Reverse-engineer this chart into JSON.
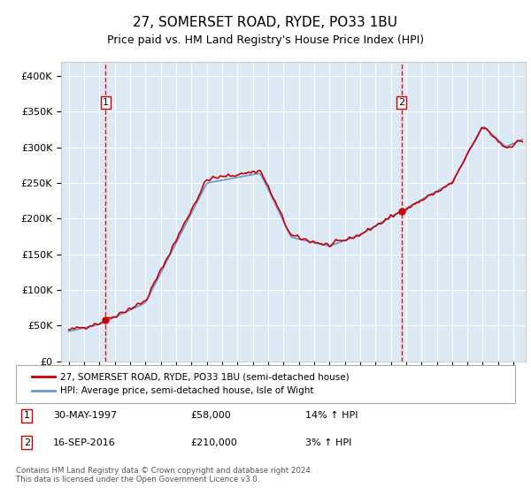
{
  "title": "27, SOMERSET ROAD, RYDE, PO33 1BU",
  "subtitle": "Price paid vs. HM Land Registry's House Price Index (HPI)",
  "legend_line1": "27, SOMERSET ROAD, RYDE, PO33 1BU (semi-detached house)",
  "legend_line2": "HPI: Average price, semi-detached house, Isle of Wight",
  "footer": "Contains HM Land Registry data © Crown copyright and database right 2024.\nThis data is licensed under the Open Government Licence v3.0.",
  "sale1_label": "1",
  "sale1_date": "30-MAY-1997",
  "sale1_price": "£58,000",
  "sale1_hpi": "14% ↑ HPI",
  "sale2_label": "2",
  "sale2_date": "16-SEP-2016",
  "sale2_price": "£210,000",
  "sale2_hpi": "3% ↑ HPI",
  "sale1_year": 1997.4,
  "sale1_value": 58000,
  "sale2_year": 2016.7,
  "sale2_value": 210000,
  "price_color": "#cc0000",
  "hpi_color": "#6699cc",
  "dashed_color": "#cc0000",
  "plot_bg": "#dce9f5",
  "ylim": [
    0,
    420000
  ],
  "yticks": [
    0,
    50000,
    100000,
    150000,
    200000,
    250000,
    300000,
    350000,
    400000
  ],
  "xlim_start": 1994.5,
  "xlim_end": 2024.8
}
